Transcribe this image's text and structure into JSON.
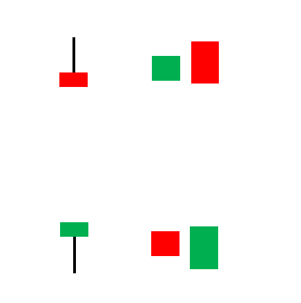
{
  "colors": {
    "background": "#ffffff",
    "bearish": "#ff0000",
    "bullish": "#00b050",
    "wick": "#000000"
  },
  "patterns": [
    {
      "name": "inverted-hammer-bearish",
      "description_visible": "",
      "candles": [
        {
          "type": "wick-candle",
          "direction": "bearish",
          "body": "bottom",
          "wick": "up"
        }
      ]
    },
    {
      "name": "bullish-then-bearish-pair",
      "candles": [
        {
          "type": "small-body",
          "direction": "bullish"
        },
        {
          "type": "tall-body",
          "direction": "bearish"
        }
      ]
    },
    {
      "name": "hanging-man-bullish",
      "candles": [
        {
          "type": "wick-candle",
          "direction": "bullish",
          "body": "top",
          "wick": "down"
        }
      ]
    },
    {
      "name": "bearish-then-bullish-pair",
      "candles": [
        {
          "type": "small-body",
          "direction": "bearish"
        },
        {
          "type": "tall-body",
          "direction": "bullish"
        }
      ]
    }
  ]
}
